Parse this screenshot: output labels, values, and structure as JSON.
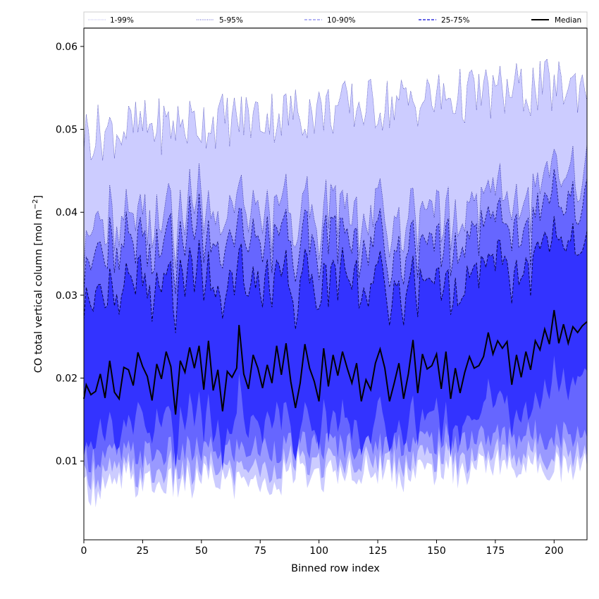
{
  "chart_data": {
    "type": "area",
    "xlabel": "Binned row index",
    "ylabel_main": "CO total vertical column [mol m",
    "ylabel_sup": "−2",
    "ylabel_close": "]",
    "xlim": [
      0,
      214
    ],
    "ylim": [
      0.0005,
      0.0622
    ],
    "x_ticks": [
      0,
      25,
      50,
      75,
      100,
      125,
      150,
      175,
      200
    ],
    "y_ticks": [
      0.01,
      0.02,
      0.03,
      0.04,
      0.05,
      0.06
    ],
    "y_tick_labels": [
      "0.01",
      "0.02",
      "0.03",
      "0.04",
      "0.05",
      "0.06"
    ],
    "n_points": 215,
    "legend_position": "top",
    "legend": [
      {
        "label": "1-99%",
        "style": "dotted-light"
      },
      {
        "label": "5-95%",
        "style": "dotted"
      },
      {
        "label": "10-90%",
        "style": "dashed-light"
      },
      {
        "label": "25-75%",
        "style": "dashed"
      },
      {
        "label": "Median",
        "style": "solid"
      }
    ],
    "bands": [
      {
        "name": "1-99%",
        "fill": "#ccccff"
      },
      {
        "name": "5-95%",
        "fill": "#9999ff"
      },
      {
        "name": "10-90%",
        "fill": "#6666ff"
      },
      {
        "name": "25-75%",
        "fill": "#3333ff"
      }
    ],
    "median_color": "#000000",
    "median_anchors": {
      "x": [
        0,
        1,
        3,
        5,
        7,
        9,
        11,
        13,
        15,
        17,
        19,
        21,
        23,
        25,
        27,
        29,
        31,
        33,
        35,
        37,
        39,
        41,
        43,
        45,
        47,
        49,
        51,
        53,
        55,
        57,
        59,
        61,
        63,
        65,
        66,
        68,
        70,
        72,
        74,
        76,
        78,
        80,
        82,
        84,
        86,
        88,
        90,
        92,
        94,
        96,
        98,
        100,
        102,
        104,
        106,
        108,
        110,
        112,
        114,
        116,
        118,
        120,
        122,
        124,
        126,
        128,
        130,
        132,
        134,
        136,
        138,
        140,
        142,
        144,
        146,
        148,
        150,
        152,
        154,
        156,
        158,
        160,
        162,
        164,
        166,
        168,
        170,
        172,
        174,
        176,
        178,
        180,
        182,
        184,
        186,
        188,
        190,
        192,
        194,
        196,
        198,
        200,
        202,
        204,
        206,
        208,
        210,
        212,
        214
      ],
      "y": [
        0.0175,
        0.0192,
        0.018,
        0.0184,
        0.0205,
        0.0176,
        0.0221,
        0.0183,
        0.0175,
        0.0213,
        0.021,
        0.0191,
        0.0231,
        0.0214,
        0.0202,
        0.0173,
        0.0217,
        0.0199,
        0.0232,
        0.0214,
        0.0156,
        0.0221,
        0.0207,
        0.0237,
        0.0212,
        0.0239,
        0.0186,
        0.0245,
        0.0185,
        0.021,
        0.016,
        0.0208,
        0.0201,
        0.0212,
        0.0264,
        0.0205,
        0.0187,
        0.0228,
        0.0212,
        0.0188,
        0.0216,
        0.0194,
        0.0239,
        0.0204,
        0.0242,
        0.0196,
        0.0164,
        0.0194,
        0.0241,
        0.0212,
        0.0196,
        0.0172,
        0.0236,
        0.019,
        0.0228,
        0.0203,
        0.0232,
        0.0212,
        0.0194,
        0.0218,
        0.0172,
        0.0198,
        0.0186,
        0.0218,
        0.0235,
        0.0212,
        0.0172,
        0.0194,
        0.0218,
        0.0175,
        0.0205,
        0.0246,
        0.0182,
        0.0229,
        0.0211,
        0.0215,
        0.0229,
        0.0187,
        0.0232,
        0.0175,
        0.0212,
        0.0182,
        0.0207,
        0.0226,
        0.0212,
        0.0215,
        0.0226,
        0.0255,
        0.0229,
        0.0245,
        0.0236,
        0.0244,
        0.0192,
        0.0228,
        0.0201,
        0.0232,
        0.021,
        0.0245,
        0.0234,
        0.0259,
        0.0241,
        0.0282,
        0.0242,
        0.0265,
        0.0242,
        0.0262,
        0.0255,
        0.0263,
        0.0268
      ]
    },
    "band_offsets": {
      "p75": 0.0108,
      "p90": 0.0157,
      "p95": 0.0191,
      "p99": 0.0314,
      "p25": 0.0062,
      "p10": 0.0095,
      "p5": 0.0107,
      "p1": 0.0122
    }
  }
}
